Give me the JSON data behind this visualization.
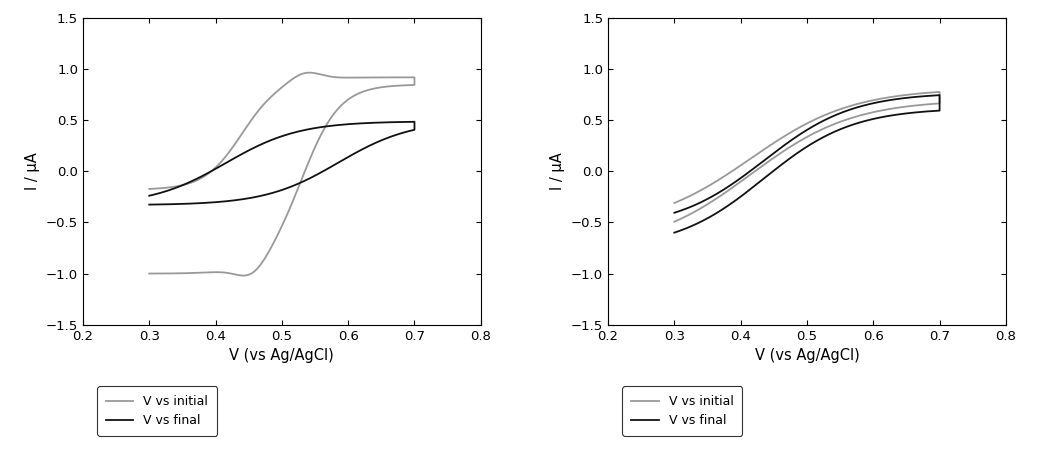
{
  "xlim": [
    0.2,
    0.8
  ],
  "ylim": [
    -1.5,
    1.5
  ],
  "xlabel": "V (vs Ag/AgCl)",
  "ylabel": "I / μA",
  "xticks": [
    0.2,
    0.3,
    0.4,
    0.5,
    0.6,
    0.7,
    0.8
  ],
  "yticks": [
    -1.5,
    -1.0,
    -0.5,
    0.0,
    0.5,
    1.0,
    1.5
  ],
  "color_initial": "#999999",
  "color_final": "#111111",
  "legend_labels": [
    "V vs initial",
    "V vs final"
  ],
  "lw": 1.3
}
